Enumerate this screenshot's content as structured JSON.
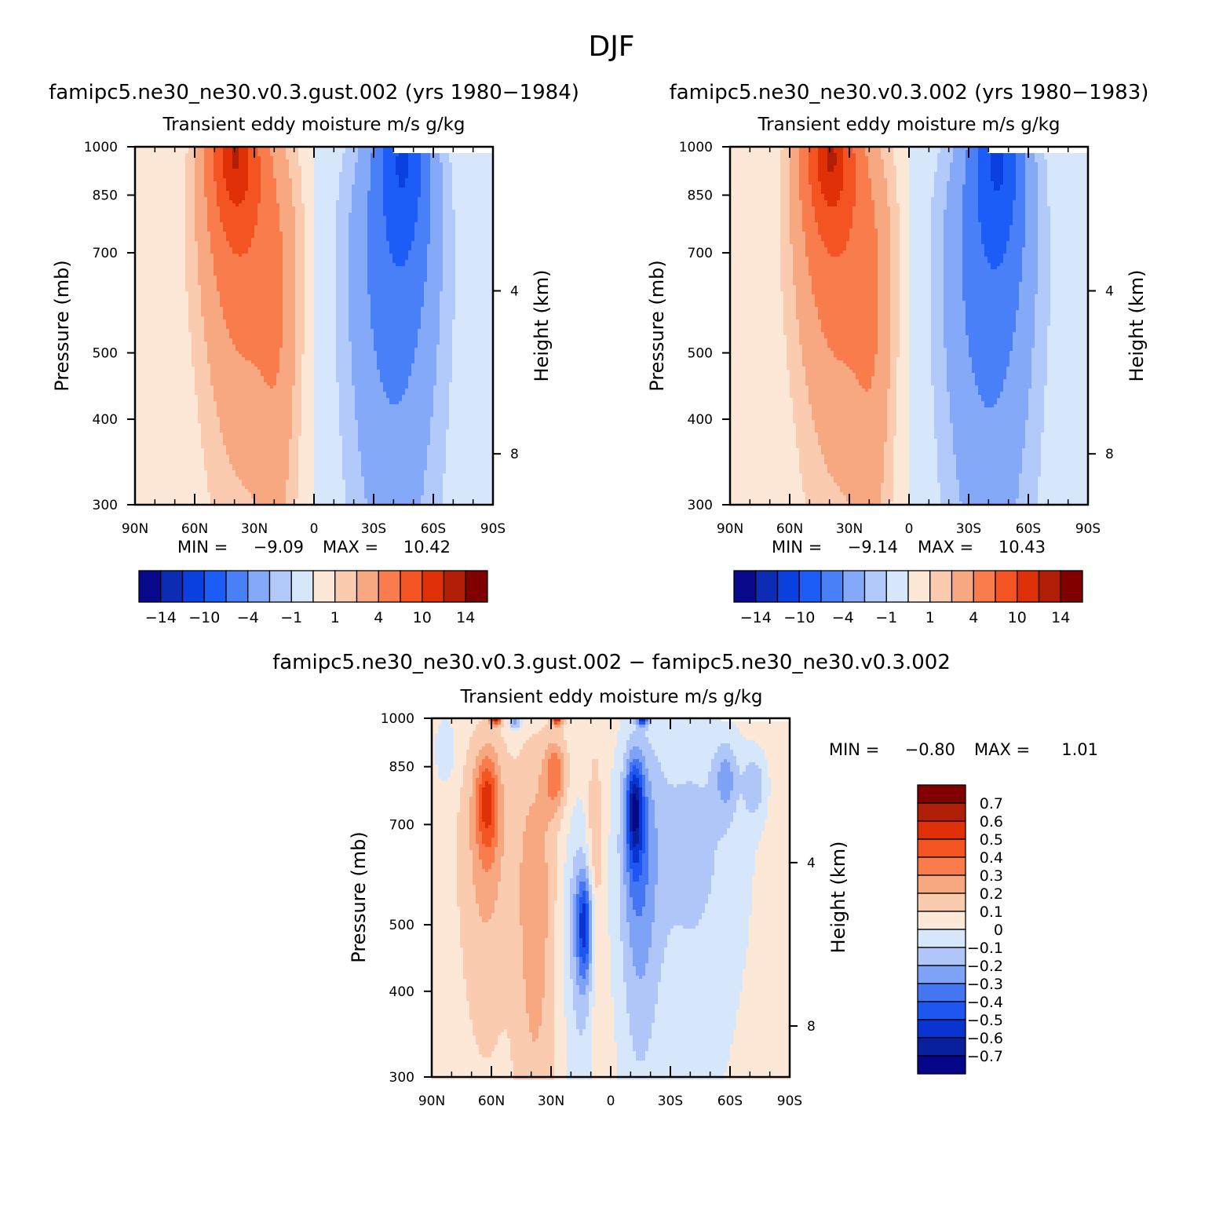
{
  "figure_title": "DJF",
  "colors": {
    "diverging": [
      "#08088a",
      "#0c2cb4",
      "#0a3fe0",
      "#1c5cf7",
      "#4a80f7",
      "#85a9f9",
      "#b2caf9",
      "#d6e6fb",
      "#fde8d8",
      "#fbcbb0",
      "#f8a880",
      "#f87c4c",
      "#f45422",
      "#e03008",
      "#b01e08",
      "#800000"
    ],
    "diff_palette": [
      "#06068a",
      "#08209e",
      "#0a34d2",
      "#1e56f2",
      "#4476f4",
      "#7ea2f6",
      "#b0c6f8",
      "#d6e6fb",
      "#fde8d8",
      "#fbcbb0",
      "#f8a880",
      "#f87c4c",
      "#f45422",
      "#e03008",
      "#b01e08",
      "#800000"
    ]
  },
  "chart_data": [
    {
      "type": "heatmap",
      "title": "famipc5.ne30_ne30.v0.3.gust.002 (yrs 1980−1984)",
      "subtitle": "Transient eddy moisture m/s g/kg",
      "xlabel": "",
      "ylabel": "Pressure (mb)",
      "ylabel_right": "Height (km)",
      "x_ticks": [
        "90N",
        "60N",
        "30N",
        "0",
        "30S",
        "60S",
        "90S"
      ],
      "y_ticks": [
        "300",
        "400",
        "500",
        "700",
        "850",
        "1000"
      ],
      "y_ticks_right": [
        "8",
        "4"
      ],
      "xlim": [
        90,
        -90
      ],
      "ylim": [
        1000,
        300
      ],
      "min_label": "MIN =",
      "min_value": "−9.09",
      "max_label": "MAX =",
      "max_value": "10.42",
      "min": -9.09,
      "max": 10.42,
      "colorbar_labels": [
        "−14",
        "−10",
        "−4",
        "−1",
        "1",
        "4",
        "10",
        "14"
      ],
      "pos_max": {
        "lat": 38,
        "p": 1000,
        "value": 10.42
      },
      "neg_min": {
        "lat": -45,
        "p": 1000,
        "value": -9.09
      }
    },
    {
      "type": "heatmap",
      "title": "famipc5.ne30_ne30.v0.3.002 (yrs 1980−1983)",
      "subtitle": "Transient eddy moisture m/s g/kg",
      "xlabel": "",
      "ylabel": "Pressure (mb)",
      "ylabel_right": "Height (km)",
      "x_ticks": [
        "90N",
        "60N",
        "30N",
        "0",
        "30S",
        "60S",
        "90S"
      ],
      "y_ticks": [
        "300",
        "400",
        "500",
        "700",
        "850",
        "1000"
      ],
      "y_ticks_right": [
        "8",
        "4"
      ],
      "xlim": [
        90,
        -90
      ],
      "ylim": [
        1000,
        300
      ],
      "min_label": "MIN =",
      "min_value": "−9.14",
      "max_label": "MAX =",
      "max_value": "10.43",
      "min": -9.14,
      "max": 10.43,
      "colorbar_labels": [
        "−14",
        "−10",
        "−4",
        "−1",
        "1",
        "4",
        "10",
        "14"
      ],
      "pos_max": {
        "lat": 38,
        "p": 1000,
        "value": 10.43
      },
      "neg_min": {
        "lat": -45,
        "p": 1000,
        "value": -9.14
      }
    },
    {
      "type": "heatmap",
      "title": "famipc5.ne30_ne30.v0.3.gust.002 − famipc5.ne30_ne30.v0.3.002",
      "subtitle": "Transient eddy moisture m/s g/kg",
      "xlabel": "",
      "ylabel": "Pressure (mb)",
      "ylabel_right": "Height (km)",
      "x_ticks": [
        "90N",
        "60N",
        "30N",
        "0",
        "30S",
        "60S",
        "90S"
      ],
      "y_ticks": [
        "300",
        "400",
        "500",
        "700",
        "850",
        "1000"
      ],
      "y_ticks_right": [
        "8",
        "4"
      ],
      "xlim": [
        90,
        -90
      ],
      "ylim": [
        1000,
        300
      ],
      "min_label": "MIN =",
      "min_value": "−0.80",
      "max_label": "MAX =",
      "max_value": "1.01",
      "min": -0.8,
      "max": 1.01,
      "colorbar_labels": [
        "0.7",
        "0.6",
        "0.5",
        "0.4",
        "0.3",
        "0.2",
        "0.1",
        "0",
        "−0.1",
        "−0.2",
        "−0.3",
        "−0.4",
        "−0.5",
        "−0.6",
        "−0.7"
      ],
      "colorbar_orientation": "vertical",
      "notable_features": [
        {
          "lat": 60,
          "p": 720,
          "value": 0.35
        },
        {
          "lat": 28,
          "p": 800,
          "value": 0.3
        },
        {
          "lat": -12,
          "p": 730,
          "value": -0.55
        },
        {
          "lat": 13,
          "p": 480,
          "value": -0.45
        }
      ]
    }
  ]
}
